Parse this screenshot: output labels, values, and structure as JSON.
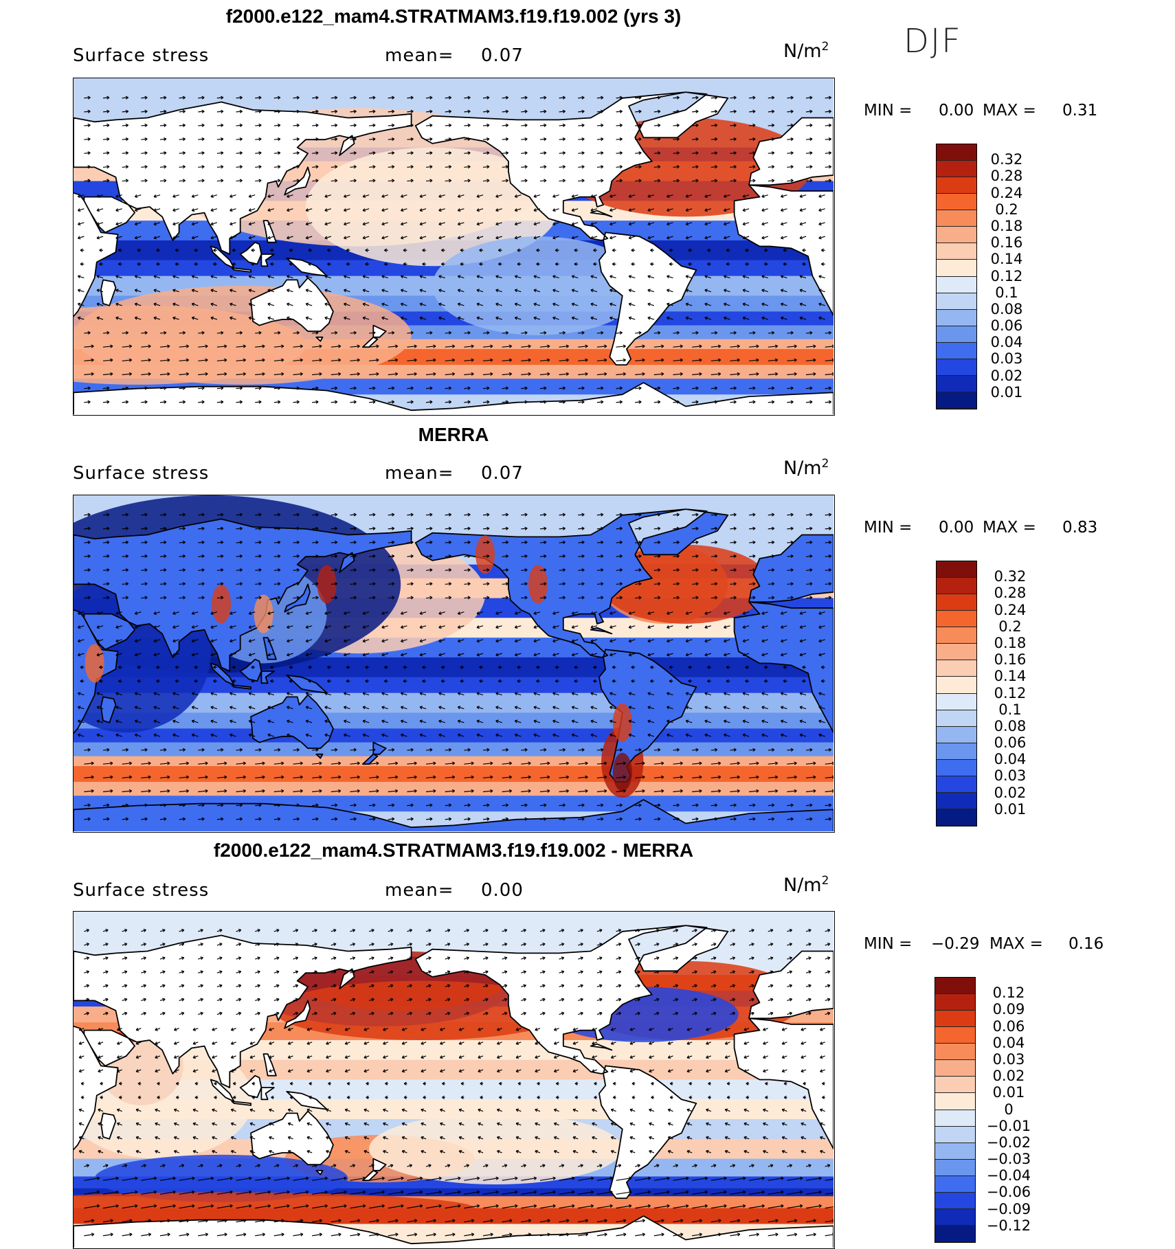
{
  "season": "DJF",
  "panels": [
    {
      "title": "f2000.e122_mam4.STRATMAM3.f19.f19.002 (yrs 3)",
      "variable": "Surface stress",
      "mean_label": "mean=",
      "mean_value": "0.07",
      "units_base": "N/m",
      "units_exp": "2",
      "min_label": "MIN =",
      "min_value": "0.00",
      "max_label": "MAX =",
      "max_value": "0.31",
      "levels": [
        "0.32",
        "0.28",
        "0.24",
        "0.2",
        "0.18",
        "0.16",
        "0.14",
        "0.12",
        "0.1",
        "0.08",
        "0.06",
        "0.04",
        "0.03",
        "0.02",
        "0.01"
      ],
      "colors": [
        "#7f0f0a",
        "#b5210f",
        "#dc3c14",
        "#f4662d",
        "#f78c5a",
        "#f9ae8a",
        "#fbcdb3",
        "#fdebd8",
        "#dfeaf8",
        "#c1d5f5",
        "#95b7f1",
        "#6b96ee",
        "#3f6df0",
        "#2347e0",
        "#0f2bb8",
        "#061a84"
      ],
      "palette": "sequential"
    },
    {
      "title": "MERRA",
      "variable": "Surface stress",
      "mean_label": "mean=",
      "mean_value": "0.07",
      "units_base": "N/m",
      "units_exp": "2",
      "min_label": "MIN =",
      "min_value": "0.00",
      "max_label": "MAX =",
      "max_value": "0.83",
      "levels": [
        "0.32",
        "0.28",
        "0.24",
        "0.2",
        "0.18",
        "0.16",
        "0.14",
        "0.12",
        "0.1",
        "0.08",
        "0.06",
        "0.04",
        "0.03",
        "0.02",
        "0.01"
      ],
      "colors": [
        "#7f0f0a",
        "#b5210f",
        "#dc3c14",
        "#f4662d",
        "#f78c5a",
        "#f9ae8a",
        "#fbcdb3",
        "#fdebd8",
        "#dfeaf8",
        "#c1d5f5",
        "#95b7f1",
        "#6b96ee",
        "#3f6df0",
        "#2347e0",
        "#0f2bb8",
        "#061a84"
      ],
      "palette": "sequential"
    },
    {
      "title": "f2000.e122_mam4.STRATMAM3.f19.f19.002 - MERRA",
      "variable": "Surface stress",
      "mean_label": "mean=",
      "mean_value": "0.00",
      "units_base": "N/m",
      "units_exp": "2",
      "min_label": "MIN =",
      "min_value": "−0.29",
      "max_label": "MAX =",
      "max_value": "0.16",
      "levels": [
        "0.12",
        "0.09",
        "0.06",
        "0.04",
        "0.03",
        "0.02",
        "0.01",
        "0",
        "−0.01",
        "−0.02",
        "−0.03",
        "−0.04",
        "−0.06",
        "−0.09",
        "−0.12"
      ],
      "colors": [
        "#7f0f0a",
        "#b5210f",
        "#dc3c14",
        "#f4662d",
        "#f78c5a",
        "#f9ae8a",
        "#fbcdb3",
        "#fdebd8",
        "#dfeaf8",
        "#c1d5f5",
        "#95b7f1",
        "#6b96ee",
        "#3f6df0",
        "#2347e0",
        "#0f2bb8",
        "#061a84"
      ],
      "palette": "diverging"
    }
  ]
}
